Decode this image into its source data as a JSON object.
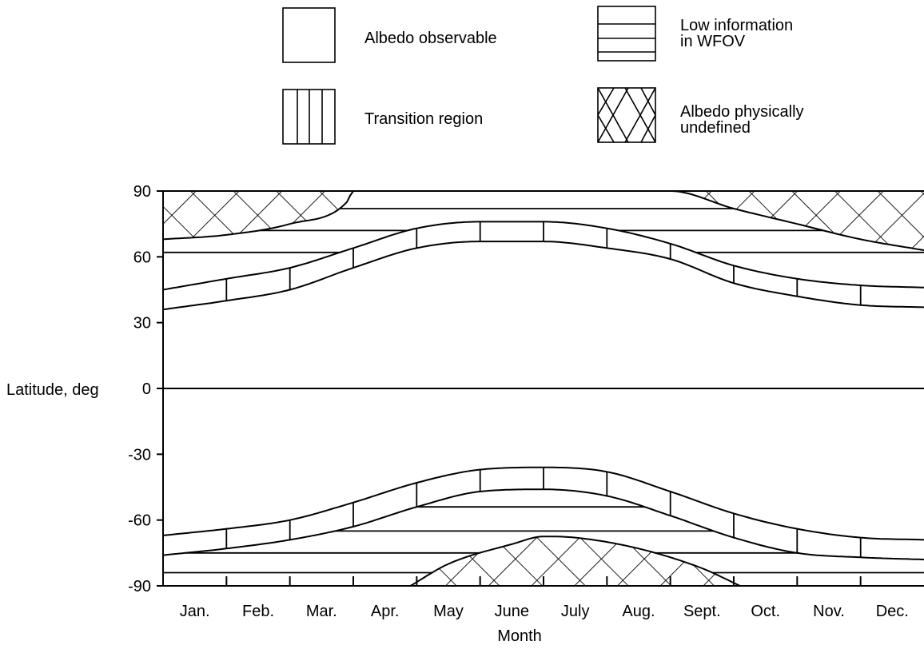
{
  "chart_data": {
    "type": "area",
    "title": "",
    "xlabel": "Month",
    "ylabel": "Latitude, deg",
    "x_categories": [
      "Jan.",
      "Feb.",
      "Mar.",
      "Apr.",
      "May",
      "June",
      "July",
      "Aug.",
      "Sept.",
      "Oct.",
      "Nov.",
      "Dec."
    ],
    "y_ticks": [
      90,
      60,
      30,
      0,
      -30,
      -60,
      -90
    ],
    "ylim": [
      -90,
      90
    ],
    "legend": {
      "placement": "top",
      "items": [
        {
          "key": "observable",
          "label": "Albedo observable",
          "pattern": "blank"
        },
        {
          "key": "low_info",
          "label": "Low information\nin WFOV",
          "pattern": "horizontal-lines"
        },
        {
          "key": "transition",
          "label": "Transition region",
          "pattern": "vertical-lines"
        },
        {
          "key": "undefined",
          "label": "Albedo physically\nundefined",
          "pattern": "crosshatch"
        }
      ]
    },
    "x_position_note": "x in months: 0 = start of Jan., 12 = end of Dec.",
    "boundaries": {
      "north_undefined": {
        "x": [
          0,
          1,
          2,
          2.9,
          3.0,
          7.6,
          8.0,
          9.0,
          10.0,
          11.0,
          12.0
        ],
        "y": [
          68,
          70,
          75,
          85,
          90,
          90,
          90,
          82,
          75,
          68,
          63
        ]
      },
      "north_transition_upper": {
        "x": [
          0,
          1,
          2,
          3,
          4,
          5,
          6,
          7,
          8,
          9,
          10,
          11,
          12
        ],
        "y": [
          45,
          50,
          55,
          64,
          73,
          76,
          76,
          73,
          66,
          56,
          50,
          47,
          46
        ]
      },
      "north_transition_lower": {
        "x": [
          0,
          1,
          2,
          3,
          4,
          5,
          6,
          7,
          8,
          9,
          10,
          11,
          12
        ],
        "y": [
          36,
          40,
          45,
          55,
          64,
          67,
          67,
          64,
          59,
          48,
          42,
          38,
          37
        ]
      },
      "south_transition_upper": {
        "x": [
          0,
          1,
          2,
          3,
          4,
          5,
          6,
          7,
          8,
          9,
          10,
          11,
          12
        ],
        "y": [
          -67,
          -64,
          -60,
          -52,
          -43,
          -37,
          -36,
          -38,
          -47,
          -57,
          -64,
          -68,
          -69
        ]
      },
      "south_transition_lower": {
        "x": [
          0,
          1,
          2,
          3,
          4,
          5,
          6,
          7,
          8,
          9,
          10,
          11,
          12
        ],
        "y": [
          -76,
          -73,
          -69,
          -63,
          -54,
          -47,
          -46,
          -49,
          -58,
          -68,
          -75,
          -77,
          -78
        ]
      },
      "south_undefined": {
        "x": [
          3.9,
          4.5,
          5.5,
          6.0,
          6.5,
          7.5,
          8.5,
          9.1
        ],
        "y": [
          -90,
          -80,
          -71,
          -67.5,
          -68,
          -73,
          -82,
          -90
        ]
      }
    },
    "low_info_line_latitudes": [
      82,
      72,
      62,
      -54,
      -65,
      -75,
      -84
    ],
    "grid": false
  }
}
